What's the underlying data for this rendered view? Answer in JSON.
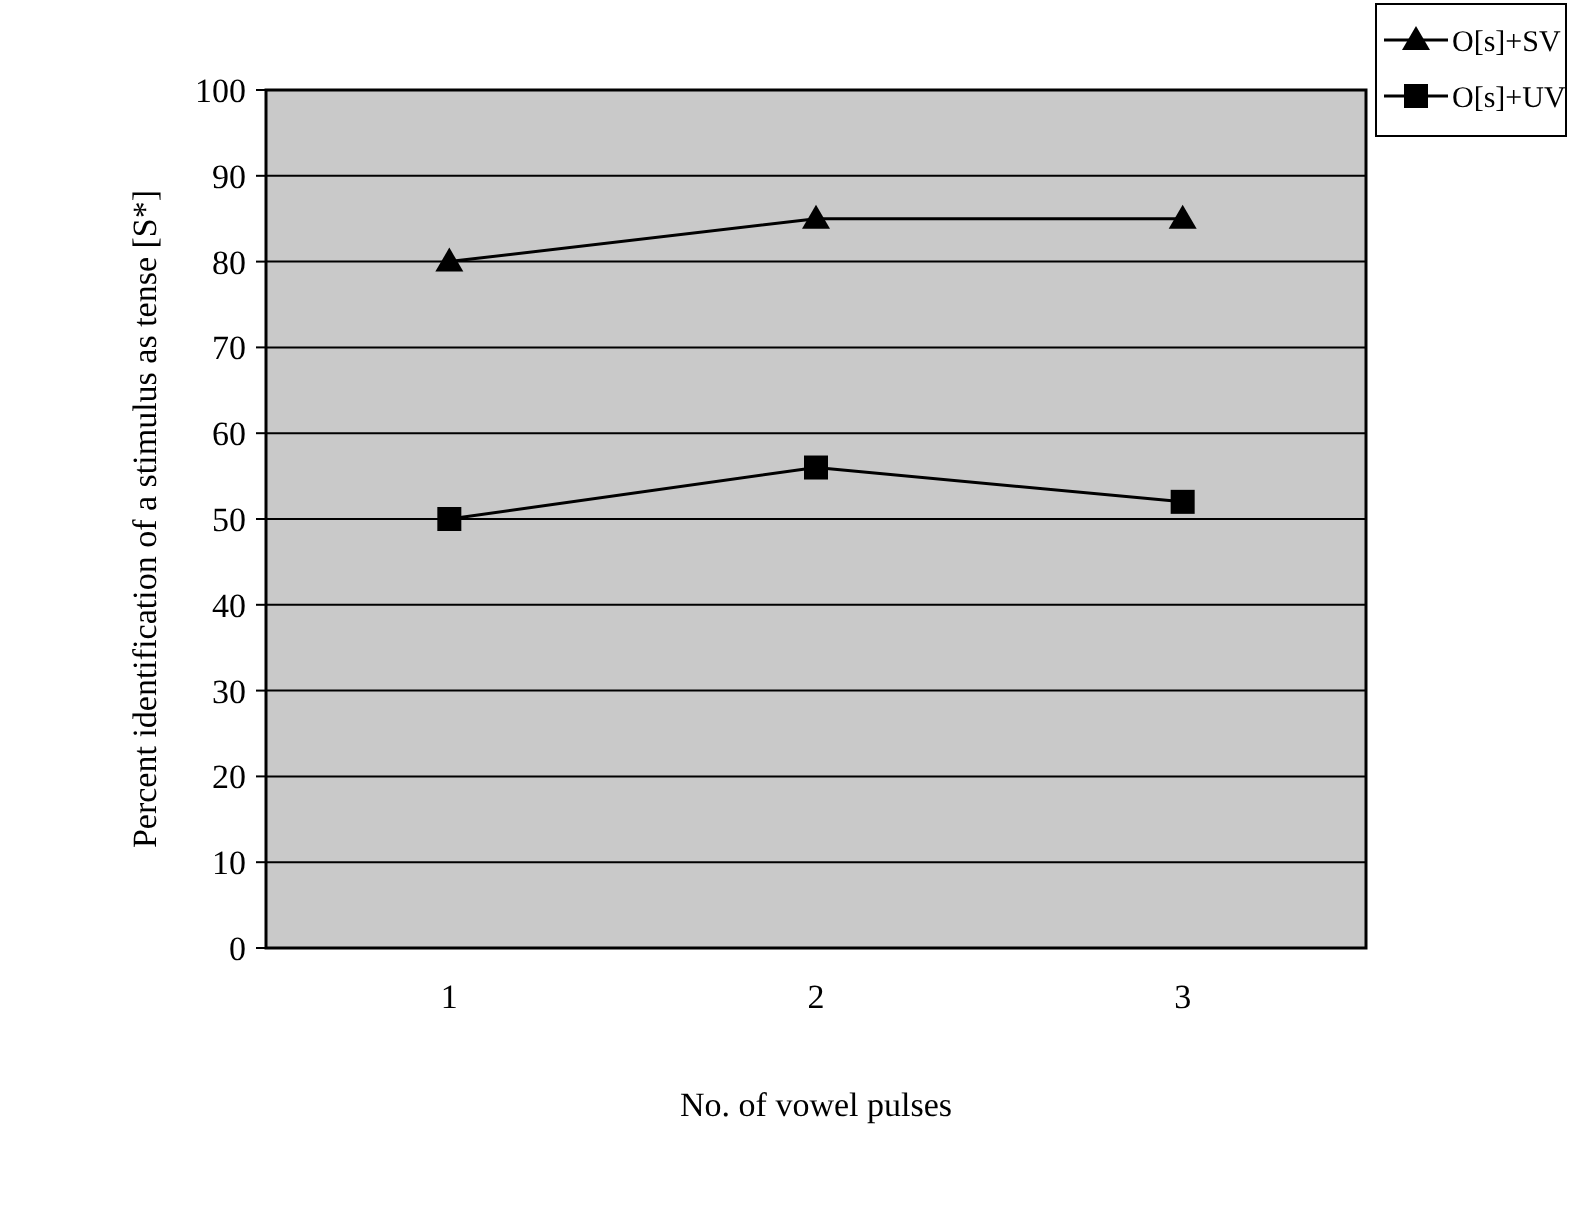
{
  "chart_data": {
    "type": "line",
    "xlabel": "No. of vowel pulses",
    "ylabel": "Percent identification of a stimulus as tense [S*]",
    "categories": [
      "1",
      "2",
      "3"
    ],
    "ylim": [
      0,
      100
    ],
    "yticks": [
      0,
      10,
      20,
      30,
      40,
      50,
      60,
      70,
      80,
      90,
      100
    ],
    "grid": "y",
    "legend": "top right",
    "line_style": "solid",
    "series": [
      {
        "name": "O[s]+SV",
        "color": "#000000",
        "marker": "triangle",
        "values": [
          80,
          85,
          85
        ]
      },
      {
        "name": "O[s]+UV",
        "color": "#000000",
        "marker": "square",
        "values": [
          50,
          56,
          52
        ]
      }
    ]
  }
}
